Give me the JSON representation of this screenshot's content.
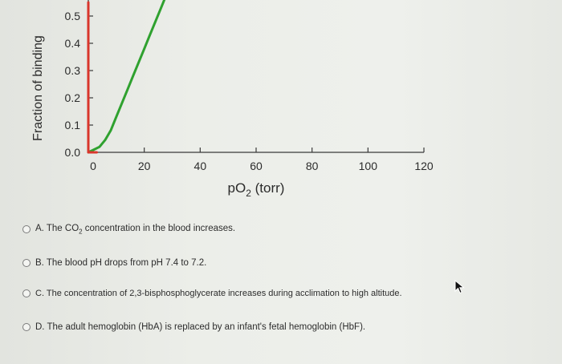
{
  "chart_data": {
    "type": "line",
    "ylabel": "Fraction of binding",
    "xlabel": "pO",
    "xlabel_sub": "2",
    "xlabel_unit": " (torr)",
    "x_ticks": [
      "0",
      "20",
      "40",
      "60",
      "80",
      "100",
      "120"
    ],
    "y_ticks": [
      "0.0",
      "0.1",
      "0.2",
      "0.3",
      "0.4",
      "0.5"
    ],
    "xlim": [
      0,
      120
    ],
    "ylim": [
      0,
      0.5
    ],
    "series": [
      {
        "color": "#2fa12f",
        "x": [
          0,
          2,
          4,
          6,
          8,
          10,
          12,
          14,
          16,
          18,
          20,
          22,
          24,
          26,
          28
        ],
        "y": [
          0.0,
          0.01,
          0.02,
          0.045,
          0.08,
          0.13,
          0.18,
          0.23,
          0.28,
          0.33,
          0.38,
          0.43,
          0.48,
          0.53,
          0.58
        ]
      },
      {
        "color": "#d9362c",
        "x": [
          0,
          0,
          3
        ],
        "y": [
          0.55,
          0.0,
          0.0
        ]
      }
    ]
  },
  "options": [
    {
      "letter": "A.",
      "text_parts": [
        "The CO",
        "2",
        " concentration in the blood increases."
      ]
    },
    {
      "letter": "B.",
      "text_parts": [
        "The blood pH drops from pH 7.4 to 7.2.",
        "",
        ""
      ]
    },
    {
      "letter": "C.",
      "text_parts": [
        "The concentration of 2,3-bisphosphoglycerate increases during acclimation to high altitude.",
        "",
        ""
      ]
    },
    {
      "letter": "D.",
      "text_parts": [
        "The adult hemoglobin (HbA) is replaced by an infant's fetal hemoglobin (HbF).",
        "",
        ""
      ]
    }
  ]
}
